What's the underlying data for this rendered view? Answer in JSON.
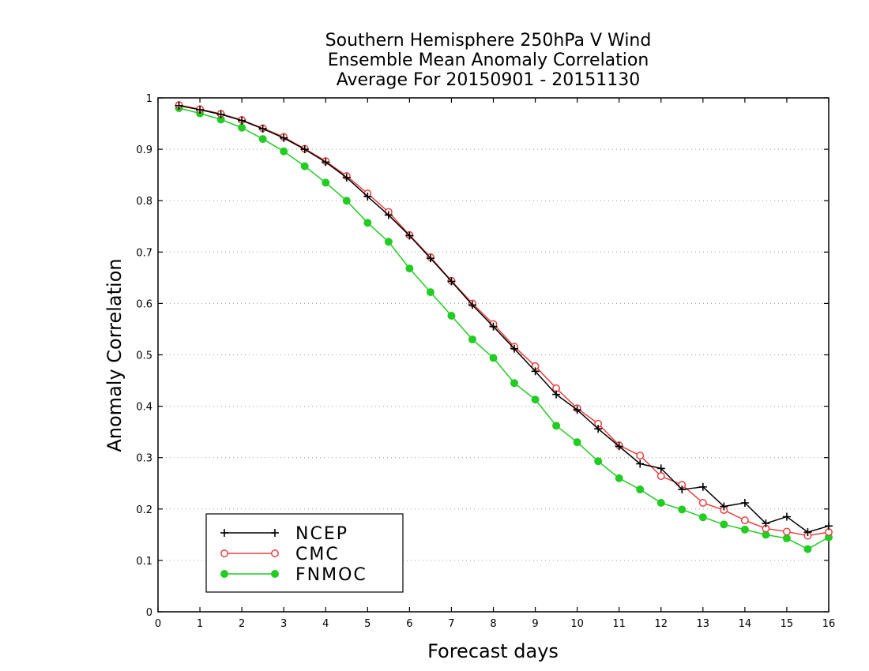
{
  "chart_data": {
    "type": "line",
    "title_lines": [
      "Southern Hemisphere 250hPa V Wind",
      "Ensemble Mean Anomaly Correlation",
      "Average For 20150901 - 20151130"
    ],
    "xlabel": "Forecast days",
    "ylabel": "Anomaly Correlation",
    "xlim": [
      0,
      16
    ],
    "ylim": [
      0,
      1
    ],
    "x_ticks": [
      0,
      1,
      2,
      3,
      4,
      5,
      6,
      7,
      8,
      9,
      10,
      11,
      12,
      13,
      14,
      15,
      16
    ],
    "y_ticks": [
      0,
      0.1,
      0.2,
      0.3,
      0.4,
      0.5,
      0.6,
      0.7,
      0.8,
      0.9,
      1
    ],
    "grid": "horizontal dotted",
    "legend_position": "bottom-left",
    "x": [
      0.5,
      1,
      1.5,
      2,
      2.5,
      3,
      3.5,
      4,
      4.5,
      5,
      5.5,
      6,
      6.5,
      7,
      7.5,
      8,
      8.5,
      9,
      9.5,
      10,
      10.5,
      11,
      11.5,
      12,
      12.5,
      13,
      13.5,
      14,
      14.5,
      15,
      15.5,
      16
    ],
    "series": [
      {
        "name": "NCEP",
        "color": "#000000",
        "marker": "plus",
        "values": [
          0.985,
          0.977,
          0.968,
          0.956,
          0.94,
          0.922,
          0.9,
          0.875,
          0.845,
          0.808,
          0.772,
          0.732,
          0.688,
          0.643,
          0.597,
          0.555,
          0.512,
          0.468,
          0.423,
          0.393,
          0.356,
          0.322,
          0.288,
          0.279,
          0.238,
          0.243,
          0.205,
          0.212,
          0.172,
          0.185,
          0.155,
          0.167
        ]
      },
      {
        "name": "CMC",
        "color": "#e84040",
        "marker": "open-circle",
        "values": [
          0.986,
          0.978,
          0.969,
          0.957,
          0.941,
          0.924,
          0.901,
          0.877,
          0.848,
          0.814,
          0.778,
          0.733,
          0.69,
          0.644,
          0.6,
          0.56,
          0.516,
          0.478,
          0.435,
          0.396,
          0.366,
          0.324,
          0.304,
          0.264,
          0.247,
          0.212,
          0.198,
          0.178,
          0.162,
          0.156,
          0.148,
          0.155
        ]
      },
      {
        "name": "FNMOC",
        "color": "#22cc22",
        "marker": "filled-circle",
        "values": [
          0.98,
          0.97,
          0.958,
          0.942,
          0.92,
          0.896,
          0.867,
          0.835,
          0.8,
          0.757,
          0.72,
          0.668,
          0.622,
          0.576,
          0.53,
          0.494,
          0.445,
          0.413,
          0.362,
          0.33,
          0.293,
          0.26,
          0.238,
          0.212,
          0.199,
          0.184,
          0.17,
          0.16,
          0.15,
          0.143,
          0.122,
          0.145
        ]
      }
    ]
  }
}
